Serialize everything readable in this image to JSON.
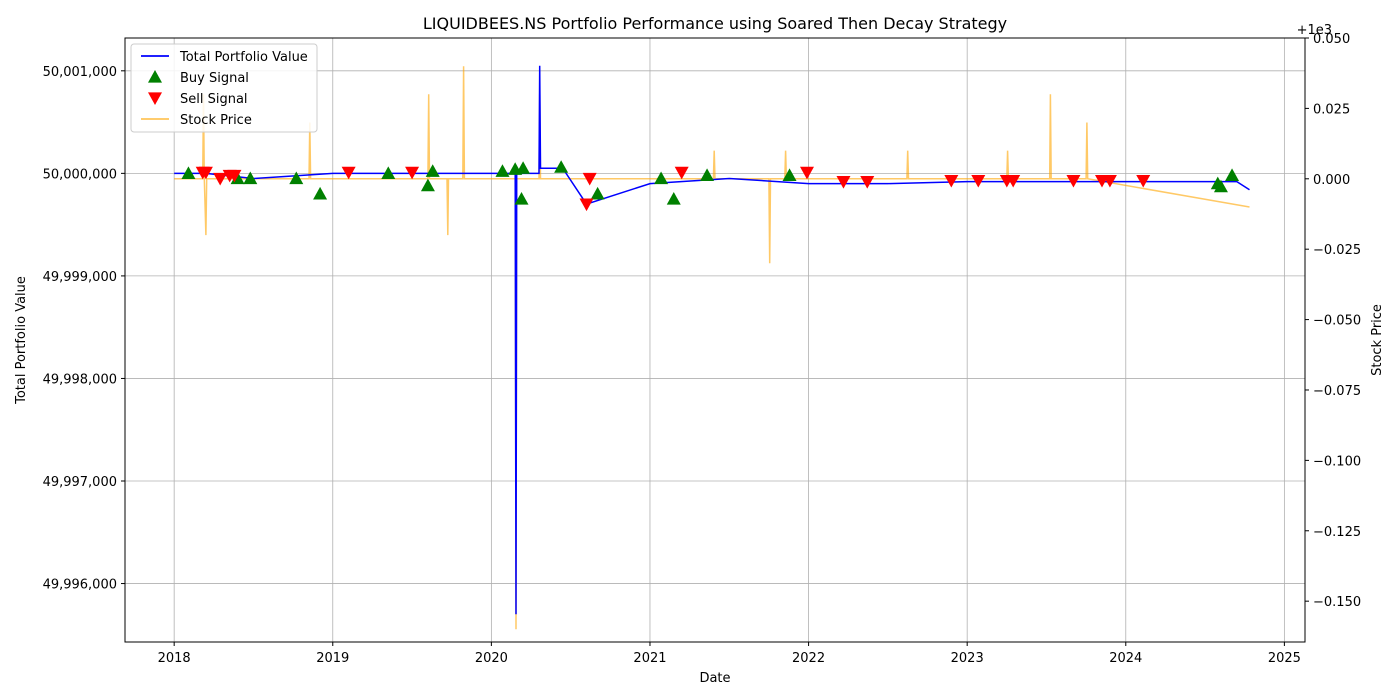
{
  "chart_data": {
    "type": "line",
    "title": "LIQUIDBEES.NS Portfolio Performance using Soared Then Decay Strategy",
    "xlabel": "Date",
    "ylabel_left": "Total Portfolio Value",
    "ylabel_right": "Stock Price",
    "right_axis_offset_text": "+1e3",
    "x_ticks": [
      "2018",
      "2019",
      "2020",
      "2021",
      "2022",
      "2023",
      "2024",
      "2025"
    ],
    "xlim": [
      2017.69,
      2025.13
    ],
    "y_left_ticks": [
      "49,996,000",
      "49,997,000",
      "49,998,000",
      "49,999,000",
      "50,000,000",
      "50,001,000"
    ],
    "y_left_tick_values": [
      49996000,
      49997000,
      49998000,
      49999000,
      50000000,
      50001000
    ],
    "ylim_left": [
      49995430,
      50001320
    ],
    "y_right_ticks": [
      "−0.150",
      "−0.125",
      "−0.100",
      "−0.075",
      "−0.050",
      "−0.025",
      "0.000",
      "0.025",
      "0.050"
    ],
    "y_right_tick_values": [
      -0.15,
      -0.125,
      -0.1,
      -0.075,
      -0.05,
      -0.025,
      0.0,
      0.025,
      0.05
    ],
    "ylim_right": [
      -0.1645,
      0.05
    ],
    "grid": true,
    "legend_position": "top-left",
    "legend": [
      {
        "label": "Total Portfolio Value",
        "kind": "line",
        "color": "#0000ff"
      },
      {
        "label": "Buy Signal",
        "kind": "triangle-up",
        "color": "#008000"
      },
      {
        "label": "Sell Signal",
        "kind": "triangle-down",
        "color": "#ff0000"
      },
      {
        "label": "Stock Price",
        "kind": "line",
        "color": "#ffa500"
      }
    ],
    "series": [
      {
        "name": "Total Portfolio Value",
        "axis": "left",
        "color": "#0000ff",
        "x": [
          2018.0,
          2018.2,
          2018.5,
          2019.0,
          2019.5,
          2019.8,
          2020.0,
          2020.15,
          2020.155,
          2020.16,
          2020.3,
          2020.305,
          2020.31,
          2020.45,
          2020.6,
          2021.0,
          2021.5,
          2022.0,
          2022.5,
          2023.0,
          2023.5,
          2024.0,
          2024.5,
          2024.7,
          2024.78
        ],
        "y": [
          50000000,
          50000000,
          49999950,
          50000000,
          50000000,
          50000000,
          50000000,
          50000000,
          49995700,
          50000000,
          50000000,
          50001050,
          50000050,
          50000050,
          49999700,
          49999900,
          49999950,
          49999900,
          49999900,
          49999920,
          49999920,
          49999920,
          49999920,
          49999920,
          49999840
        ]
      },
      {
        "name": "Stock Price",
        "axis": "right",
        "color": "#ffa500",
        "x": [
          2018.0,
          2018.18,
          2018.185,
          2018.19,
          2018.2,
          2018.205,
          2018.85,
          2018.855,
          2018.86,
          2019.6,
          2019.605,
          2019.61,
          2019.72,
          2019.725,
          2019.73,
          2019.82,
          2019.825,
          2019.83,
          2020.15,
          2020.155,
          2020.16,
          2020.3,
          2020.305,
          2020.31,
          2021.4,
          2021.405,
          2021.41,
          2021.75,
          2021.755,
          2021.76,
          2021.85,
          2021.855,
          2021.86,
          2022.62,
          2022.625,
          2022.63,
          2023.25,
          2023.255,
          2023.26,
          2023.52,
          2023.525,
          2023.53,
          2023.75,
          2023.755,
          2023.76,
          2024.78
        ],
        "y": [
          0.0,
          0.0,
          0.03,
          0.0,
          -0.02,
          0.0,
          0.0,
          0.02,
          0.0,
          0.0,
          0.03,
          0.0,
          0.0,
          -0.02,
          0.0,
          0.0,
          0.04,
          0.0,
          0.0,
          -0.16,
          0.0,
          0.0,
          0.03,
          0.0,
          0.0,
          0.01,
          0.0,
          0.0,
          -0.03,
          0.0,
          0.0,
          0.01,
          0.0,
          0.0,
          0.01,
          0.0,
          0.0,
          0.01,
          0.0,
          0.0,
          0.03,
          0.0,
          0.0,
          0.02,
          0.0,
          -0.01
        ]
      }
    ],
    "buy_signals": {
      "name": "Buy Signal",
      "color": "#008000",
      "x": [
        2018.09,
        2018.4,
        2018.48,
        2018.77,
        2018.92,
        2019.35,
        2019.6,
        2019.63,
        2020.07,
        2020.15,
        2020.19,
        2020.2,
        2020.44,
        2020.67,
        2021.07,
        2021.15,
        2021.36,
        2021.88,
        2024.58,
        2024.6,
        2024.67
      ],
      "y": [
        50000000,
        49999950,
        49999950,
        49999950,
        49999800,
        50000000,
        49999880,
        50000020,
        50000020,
        50000040,
        49999750,
        50000050,
        50000060,
        49999800,
        49999950,
        49999750,
        49999980,
        49999980,
        49999900,
        49999870,
        49999980
      ]
    },
    "sell_signals": {
      "name": "Sell Signal",
      "color": "#ff0000",
      "x": [
        2018.18,
        2018.2,
        2018.29,
        2018.35,
        2018.38,
        2019.1,
        2019.5,
        2020.6,
        2020.62,
        2021.2,
        2021.99,
        2022.22,
        2022.37,
        2022.9,
        2023.07,
        2023.25,
        2023.29,
        2023.67,
        2023.85,
        2023.9,
        2024.11
      ],
      "y": [
        50000010,
        50000010,
        49999950,
        49999980,
        49999980,
        50000010,
        50000010,
        49999700,
        49999950,
        50000010,
        50000010,
        49999920,
        49999920,
        49999930,
        49999930,
        49999930,
        49999930,
        49999930,
        49999930,
        49999930,
        49999930
      ]
    }
  }
}
